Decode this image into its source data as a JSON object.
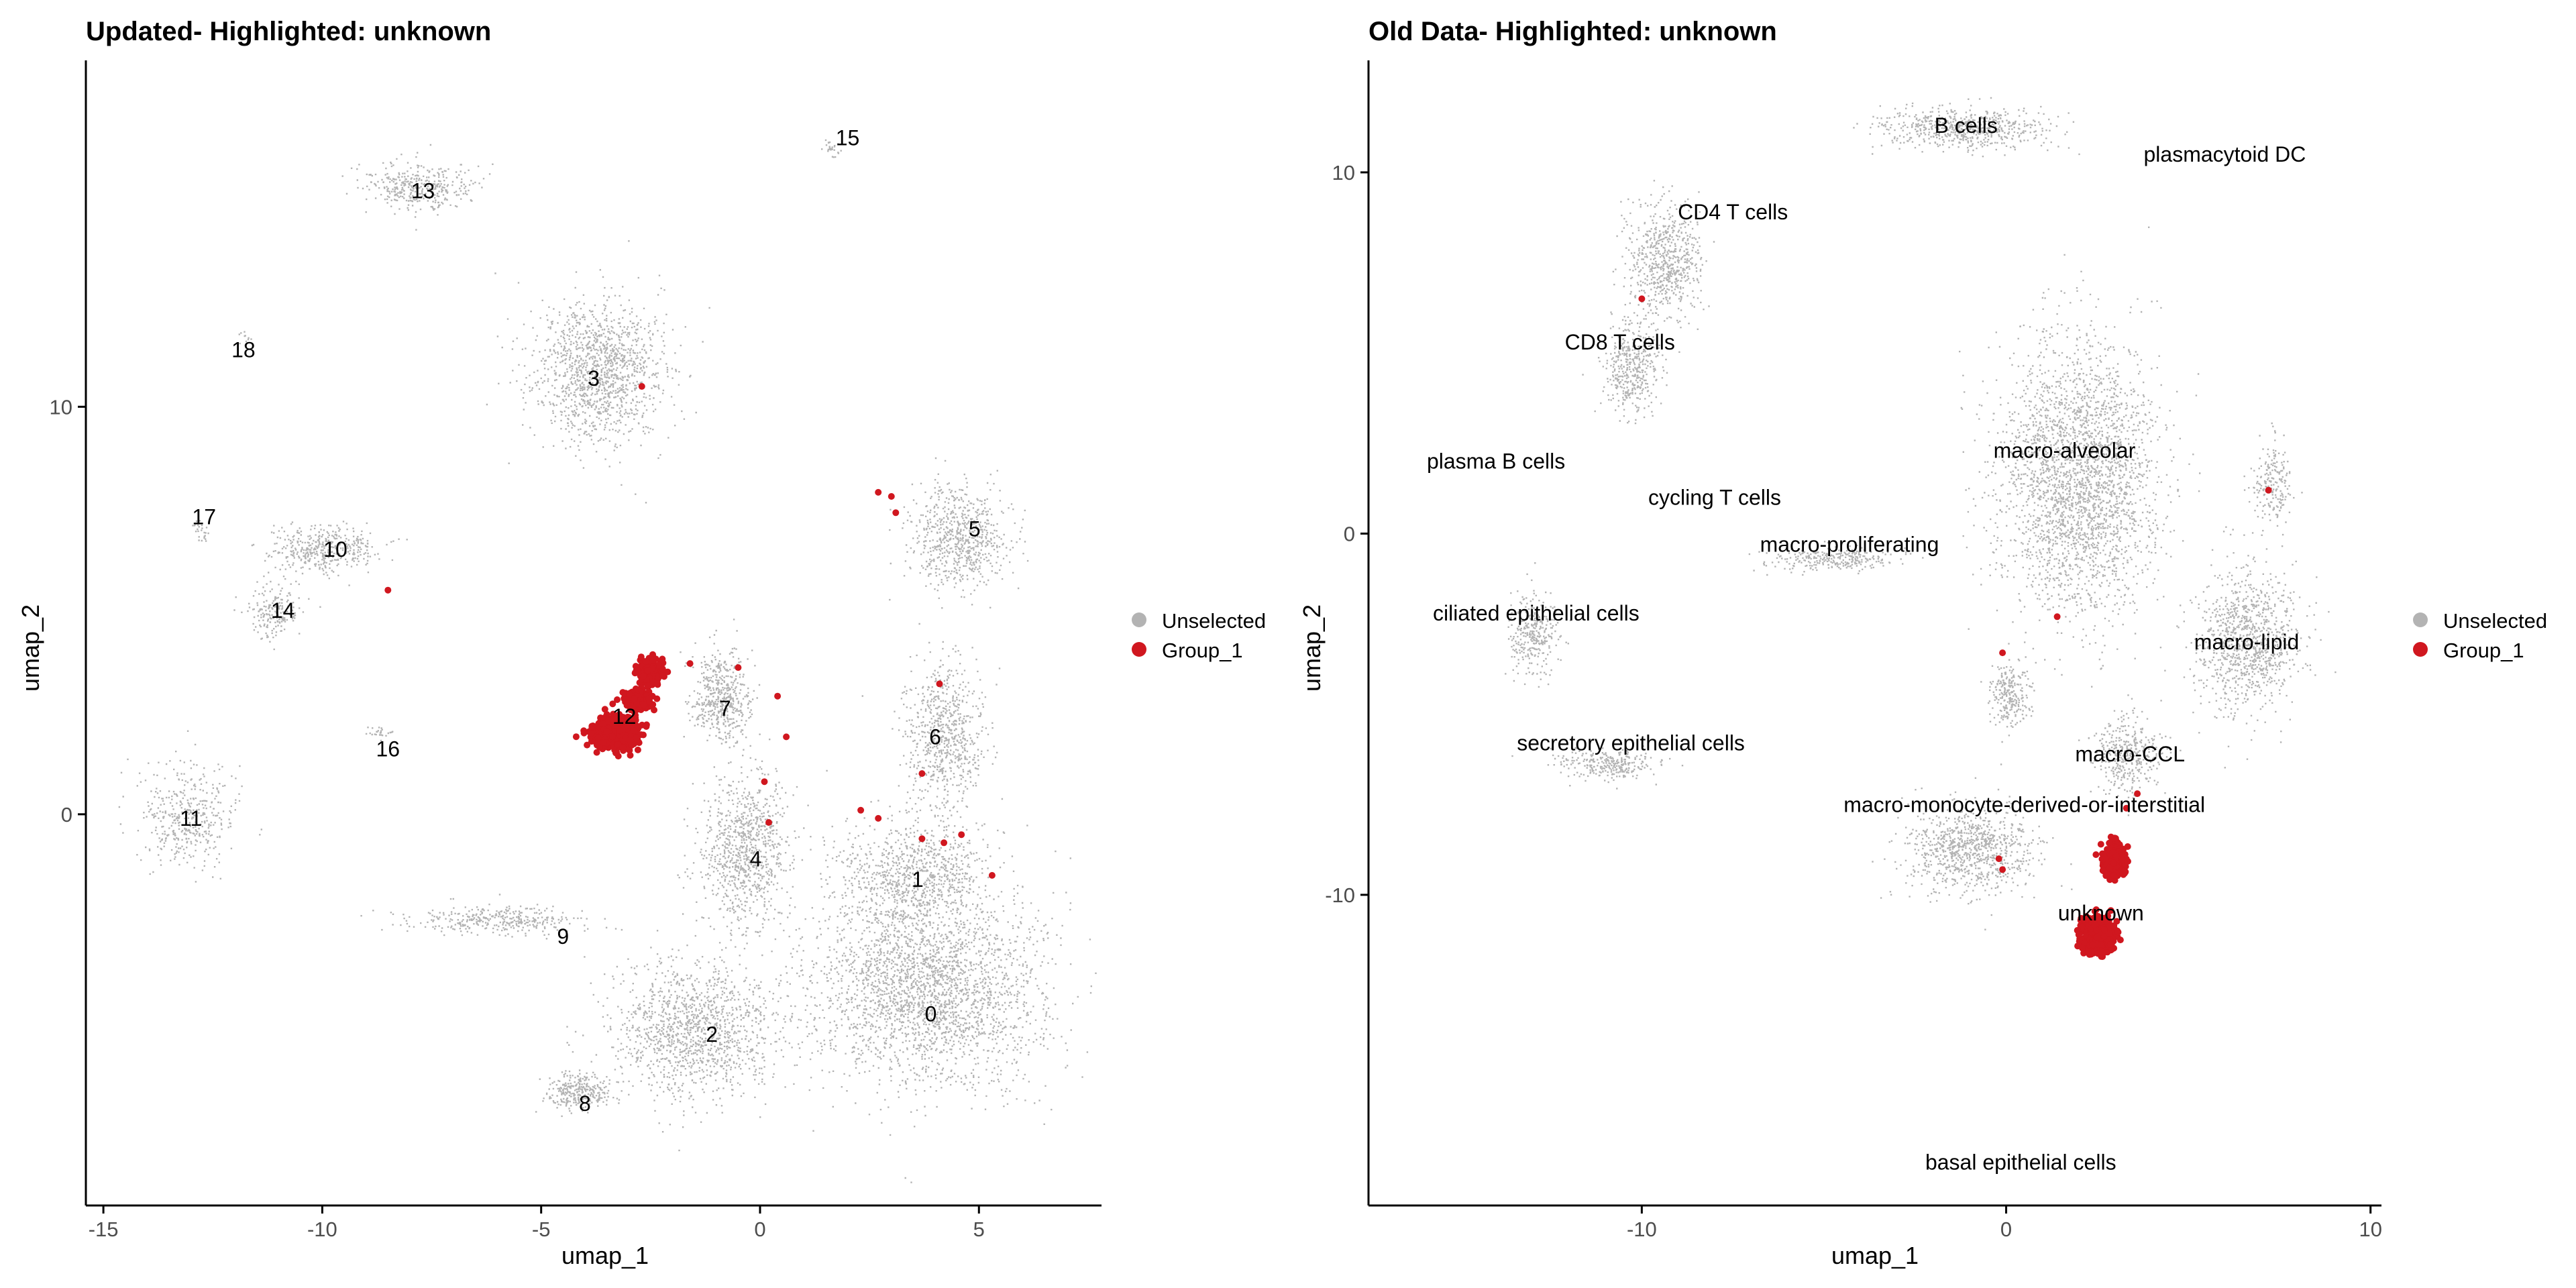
{
  "chart_data": [
    {
      "type": "scatter",
      "title": "Updated- Highlighted: unknown",
      "xlabel": "umap_1",
      "ylabel": "umap_2",
      "xlim": [
        -15.4,
        7.8
      ],
      "ylim": [
        -9.6,
        18.5
      ],
      "xticks": [
        -15,
        -10,
        -5,
        0,
        5
      ],
      "yticks": [
        0,
        10
      ],
      "grid": false,
      "legend": {
        "placement": "right",
        "entries": [
          {
            "name": "Unselected",
            "color": "#b3b3b3"
          },
          {
            "name": "Group_1",
            "color": "#d0171f"
          }
        ]
      },
      "clusters": [
        {
          "label": "0",
          "x": 3.9,
          "y": -4.9
        },
        {
          "label": "1",
          "x": 3.6,
          "y": -1.6
        },
        {
          "label": "2",
          "x": -1.1,
          "y": -5.4
        },
        {
          "label": "3",
          "x": -3.8,
          "y": 10.7
        },
        {
          "label": "4",
          "x": -0.1,
          "y": -1.1
        },
        {
          "label": "5",
          "x": 4.9,
          "y": 7.0
        },
        {
          "label": "6",
          "x": 4.0,
          "y": 1.9
        },
        {
          "label": "7",
          "x": -0.8,
          "y": 2.6
        },
        {
          "label": "8",
          "x": -4.0,
          "y": -7.1
        },
        {
          "label": "9",
          "x": -4.5,
          "y": -3.0
        },
        {
          "label": "10",
          "x": -9.7,
          "y": 6.5
        },
        {
          "label": "11",
          "x": -13.0,
          "y": -0.1
        },
        {
          "label": "12",
          "x": -3.1,
          "y": 2.4
        },
        {
          "label": "13",
          "x": -7.7,
          "y": 15.3
        },
        {
          "label": "14",
          "x": -10.9,
          "y": 5.0
        },
        {
          "label": "15",
          "x": 2.0,
          "y": 16.6
        },
        {
          "label": "16",
          "x": -8.5,
          "y": 1.6
        },
        {
          "label": "17",
          "x": -12.7,
          "y": 7.3
        },
        {
          "label": "18",
          "x": -11.8,
          "y": 11.4
        }
      ],
      "highlighted": {
        "series": "Group_1",
        "clusters": [
          "12"
        ]
      }
    },
    {
      "type": "scatter",
      "title": "Old Data- Highlighted: unknown",
      "xlabel": "umap_1",
      "ylabel": "umap_2",
      "xlim": [
        -17.5,
        10.3
      ],
      "ylim": [
        -18.6,
        13.1
      ],
      "xticks": [
        -10,
        0,
        10
      ],
      "yticks": [
        -10,
        0,
        10
      ],
      "grid": false,
      "legend": {
        "placement": "right",
        "entries": [
          {
            "name": "Unselected",
            "color": "#b3b3b3"
          },
          {
            "name": "Group_1",
            "color": "#d0171f"
          }
        ]
      },
      "clusters": [
        {
          "label": "B cells",
          "x": -1.1,
          "y": 11.3
        },
        {
          "label": "plasmacytoid DC",
          "x": 6.0,
          "y": 10.5
        },
        {
          "label": "CD4 T cells",
          "x": -7.5,
          "y": 8.9
        },
        {
          "label": "CD8 T cells",
          "x": -10.6,
          "y": 5.3
        },
        {
          "label": "plasma B cells",
          "x": -14.0,
          "y": 2.0
        },
        {
          "label": "macro-alveolar",
          "x": 1.6,
          "y": 2.3
        },
        {
          "label": "cycling T cells",
          "x": -8.0,
          "y": 1.0
        },
        {
          "label": "macro-proliferating",
          "x": -4.3,
          "y": -0.3
        },
        {
          "label": "ciliated epithelial cells",
          "x": -12.9,
          "y": -2.2
        },
        {
          "label": "macro-lipid",
          "x": 6.6,
          "y": -3.0
        },
        {
          "label": "secretory epithelial cells",
          "x": -10.3,
          "y": -5.8
        },
        {
          "label": "macro-CCL",
          "x": 3.4,
          "y": -6.1
        },
        {
          "label": "macro-monocyte-derived-or-interstitial",
          "x": 0.5,
          "y": -7.5
        },
        {
          "label": "unknown",
          "x": 2.6,
          "y": -10.5
        },
        {
          "label": "basal epithelial cells",
          "x": 0.4,
          "y": -17.4
        }
      ],
      "highlighted": {
        "series": "Group_1",
        "clusters": [
          "unknown"
        ]
      }
    }
  ]
}
